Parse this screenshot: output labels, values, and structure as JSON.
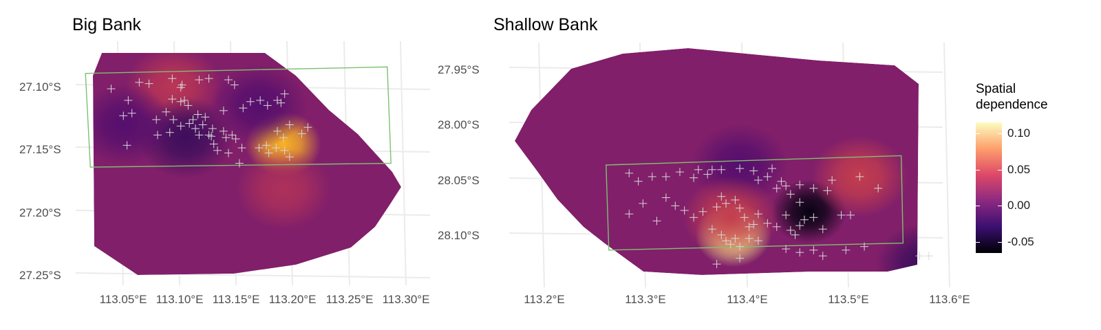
{
  "chart_data": [
    {
      "type": "heatmap",
      "title": "Big Bank",
      "xlabel": "",
      "ylabel": "",
      "x_ticks": [
        "113.05°E",
        "113.10°E",
        "113.15°E",
        "113.20°E",
        "113.25°E",
        "113.30°E"
      ],
      "y_ticks": [
        "27.10°S",
        "27.15°S",
        "27.20°S",
        "27.25°S"
      ],
      "xlim": [
        113.02,
        113.31
      ],
      "ylim": [
        -27.255,
        -27.065
      ],
      "grid": true,
      "hotspots": [
        {
          "lon": 113.19,
          "lat": -27.145,
          "value": 0.085
        },
        {
          "lon": 113.1,
          "lat": -27.1,
          "value": 0.025
        },
        {
          "lon": 113.11,
          "lat": -27.14,
          "value": -0.03
        },
        {
          "lon": 113.06,
          "lat": -27.13,
          "value": -0.02
        },
        {
          "lon": 113.17,
          "lat": -27.115,
          "value": -0.02
        },
        {
          "lon": 113.19,
          "lat": -27.18,
          "value": 0.02
        }
      ],
      "survey_box": [
        [
          113.028,
          -27.09
        ],
        [
          113.275,
          -27.085
        ],
        [
          113.278,
          -27.16
        ],
        [
          113.032,
          -27.163
        ]
      ],
      "points": [
        [
          113.049,
          -27.102
        ],
        [
          113.063,
          -27.111
        ],
        [
          113.072,
          -27.097
        ],
        [
          113.08,
          -27.098
        ],
        [
          113.099,
          -27.094
        ],
        [
          113.107,
          -27.099
        ],
        [
          113.121,
          -27.095
        ],
        [
          113.129,
          -27.094
        ],
        [
          113.145,
          -27.095
        ],
        [
          113.15,
          -27.099
        ],
        [
          113.106,
          -27.101
        ],
        [
          113.099,
          -27.11
        ],
        [
          113.106,
          -27.112
        ],
        [
          113.109,
          -27.111
        ],
        [
          113.112,
          -27.115
        ],
        [
          113.12,
          -27.122
        ],
        [
          113.126,
          -27.124
        ],
        [
          113.141,
          -27.119
        ],
        [
          113.157,
          -27.117
        ],
        [
          113.163,
          -27.112
        ],
        [
          113.171,
          -27.111
        ],
        [
          113.177,
          -27.115
        ],
        [
          113.185,
          -27.111
        ],
        [
          113.188,
          -27.113
        ],
        [
          113.191,
          -27.106
        ],
        [
          113.059,
          -27.123
        ],
        [
          113.066,
          -27.121
        ],
        [
          113.086,
          -27.126
        ],
        [
          113.094,
          -27.12
        ],
        [
          113.1,
          -27.126
        ],
        [
          113.116,
          -27.126
        ],
        [
          113.124,
          -27.13
        ],
        [
          113.132,
          -27.133
        ],
        [
          113.129,
          -27.138
        ],
        [
          113.141,
          -27.135
        ],
        [
          113.143,
          -27.14
        ],
        [
          113.148,
          -27.138
        ],
        [
          113.151,
          -27.141
        ],
        [
          113.097,
          -27.136
        ],
        [
          113.106,
          -27.131
        ],
        [
          113.113,
          -27.129
        ],
        [
          113.118,
          -27.133
        ],
        [
          113.121,
          -27.138
        ],
        [
          113.131,
          -27.139
        ],
        [
          113.133,
          -27.145
        ],
        [
          113.136,
          -27.15
        ],
        [
          113.145,
          -27.152
        ],
        [
          113.156,
          -27.148
        ],
        [
          113.17,
          -27.148
        ],
        [
          113.176,
          -27.146
        ],
        [
          113.178,
          -27.152
        ],
        [
          113.184,
          -27.148
        ],
        [
          113.191,
          -27.15
        ],
        [
          113.195,
          -27.155
        ],
        [
          113.19,
          -27.14
        ],
        [
          113.185,
          -27.135
        ],
        [
          113.195,
          -27.13
        ],
        [
          113.205,
          -27.137
        ],
        [
          113.21,
          -27.132
        ],
        [
          113.154,
          -27.16
        ],
        [
          113.062,
          -27.146
        ],
        [
          113.087,
          -27.138
        ]
      ]
    },
    {
      "type": "heatmap",
      "title": "Shallow Bank",
      "xlabel": "",
      "ylabel": "",
      "x_ticks": [
        "113.2°E",
        "113.3°E",
        "113.4°E",
        "113.5°E",
        "113.6°E"
      ],
      "y_ticks": [
        "27.95°S",
        "28.00°S",
        "28.05°S",
        "28.10°S"
      ],
      "xlim": [
        113.14,
        113.61
      ],
      "ylim": [
        -28.135,
        -27.925
      ],
      "grid": true,
      "hotspots": [
        {
          "lon": 113.383,
          "lat": -28.09,
          "value": 0.11
        },
        {
          "lon": 113.465,
          "lat": -28.07,
          "value": -0.06
        },
        {
          "lon": 113.39,
          "lat": -28.03,
          "value": -0.02
        },
        {
          "lon": 113.52,
          "lat": -28.04,
          "value": 0.03
        },
        {
          "lon": 113.59,
          "lat": -28.115,
          "value": -0.03
        },
        {
          "lon": 113.38,
          "lat": -28.075,
          "value": 0.03
        }
      ],
      "survey_box": [
        [
          113.245,
          -28.03
        ],
        [
          113.565,
          -28.022
        ],
        [
          113.567,
          -28.097
        ],
        [
          113.248,
          -28.103
        ]
      ],
      "points": [
        [
          113.27,
          -28.037
        ],
        [
          113.28,
          -28.044
        ],
        [
          113.295,
          -28.04
        ],
        [
          113.31,
          -28.04
        ],
        [
          113.325,
          -28.036
        ],
        [
          113.34,
          -28.041
        ],
        [
          113.345,
          -28.034
        ],
        [
          113.355,
          -28.038
        ],
        [
          113.36,
          -28.034
        ],
        [
          113.37,
          -28.034
        ],
        [
          113.39,
          -28.033
        ],
        [
          113.405,
          -28.035
        ],
        [
          113.41,
          -28.043
        ],
        [
          113.42,
          -28.04
        ],
        [
          113.43,
          -28.05
        ],
        [
          113.435,
          -28.044
        ],
        [
          113.44,
          -28.048
        ],
        [
          113.445,
          -28.055
        ],
        [
          113.455,
          -28.047
        ],
        [
          113.47,
          -28.05
        ],
        [
          113.485,
          -28.052
        ],
        [
          113.49,
          -28.043
        ],
        [
          113.52,
          -28.04
        ],
        [
          113.54,
          -28.05
        ],
        [
          113.27,
          -28.072
        ],
        [
          113.285,
          -28.063
        ],
        [
          113.31,
          -28.058
        ],
        [
          113.32,
          -28.065
        ],
        [
          113.34,
          -28.075
        ],
        [
          113.35,
          -28.07
        ],
        [
          113.365,
          -28.066
        ],
        [
          113.37,
          -28.057
        ],
        [
          113.375,
          -28.063
        ],
        [
          113.385,
          -28.06
        ],
        [
          113.39,
          -28.067
        ],
        [
          113.395,
          -28.075
        ],
        [
          113.4,
          -28.083
        ],
        [
          113.405,
          -28.081
        ],
        [
          113.41,
          -28.072
        ],
        [
          113.42,
          -28.08
        ],
        [
          113.43,
          -28.083
        ],
        [
          113.44,
          -28.073
        ],
        [
          113.445,
          -28.086
        ],
        [
          113.45,
          -28.09
        ],
        [
          113.455,
          -28.082
        ],
        [
          113.46,
          -28.077
        ],
        [
          113.47,
          -28.075
        ],
        [
          113.48,
          -28.085
        ],
        [
          113.5,
          -28.073
        ],
        [
          113.51,
          -28.073
        ],
        [
          113.36,
          -28.085
        ],
        [
          113.37,
          -28.09
        ],
        [
          113.375,
          -28.095
        ],
        [
          113.38,
          -28.098
        ],
        [
          113.385,
          -28.093
        ],
        [
          113.39,
          -28.1
        ],
        [
          113.4,
          -28.093
        ],
        [
          113.41,
          -28.095
        ],
        [
          113.365,
          -28.115
        ],
        [
          113.39,
          -28.11
        ],
        [
          113.44,
          -28.102
        ],
        [
          113.455,
          -28.105
        ],
        [
          113.47,
          -28.103
        ],
        [
          113.48,
          -28.108
        ],
        [
          113.505,
          -28.103
        ],
        [
          113.525,
          -28.1
        ],
        [
          113.585,
          -28.108
        ],
        [
          113.595,
          -28.108
        ],
        [
          113.3,
          -28.078
        ],
        [
          113.33,
          -28.069
        ],
        [
          113.425,
          -28.033
        ],
        [
          113.455,
          -28.062
        ]
      ]
    }
  ],
  "legend": {
    "title": "Spatial dependence",
    "ticks": [
      "0.10",
      "0.05",
      "0.00",
      "-0.05"
    ],
    "tick_values": [
      0.1,
      0.05,
      0.0,
      -0.05
    ],
    "range": [
      -0.065,
      0.115
    ],
    "colormap": "inferno"
  },
  "colors": {
    "survey_box": "#7ec070",
    "points": "#d8d8d8",
    "grid": "#ebebeb"
  }
}
